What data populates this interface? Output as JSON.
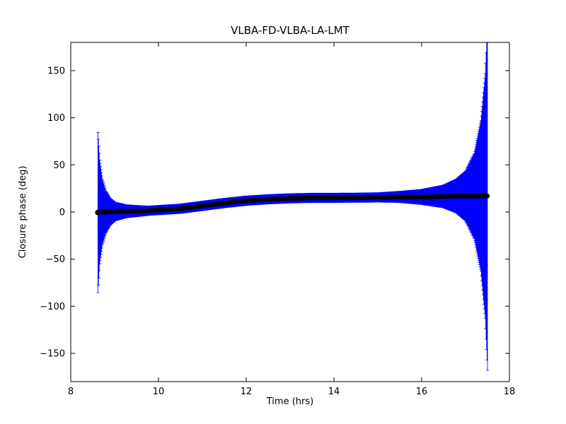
{
  "chart_data": {
    "type": "scatter",
    "title": "VLBA-FD-VLBA-LA-LMT",
    "xlabel": "Time (hrs)",
    "ylabel": "Closure phase (deg)",
    "xlim": [
      8,
      18
    ],
    "ylim": [
      -180,
      180
    ],
    "x_ticks": [
      8,
      10,
      12,
      14,
      16,
      18
    ],
    "y_ticks": [
      -150,
      -100,
      -50,
      0,
      50,
      100,
      150
    ],
    "grid": false,
    "legend": "none",
    "marker_color": "#000000",
    "errorbar_color": "#0000ff",
    "series": [
      {
        "name": "closure-phase",
        "points_format": [
          "time_hrs",
          "closure_phase_deg",
          "error_deg"
        ],
        "points": [
          [
            8.62,
            -0.5,
            85
          ],
          [
            8.66,
            0.0,
            55
          ],
          [
            8.72,
            0.0,
            35
          ],
          [
            8.8,
            0.0,
            22
          ],
          [
            8.9,
            0.3,
            14
          ],
          [
            9.0,
            0.5,
            10
          ],
          [
            9.25,
            0.8,
            7
          ],
          [
            9.5,
            1.0,
            6
          ],
          [
            9.75,
            1.3,
            5
          ],
          [
            10.0,
            2.0,
            5
          ],
          [
            10.5,
            3.5,
            5
          ],
          [
            11.0,
            6.5,
            5
          ],
          [
            11.5,
            9.5,
            5
          ],
          [
            12.0,
            12.0,
            5
          ],
          [
            12.5,
            13.5,
            5
          ],
          [
            13.0,
            14.5,
            5
          ],
          [
            13.5,
            15.0,
            5
          ],
          [
            14.0,
            15.0,
            5
          ],
          [
            14.5,
            15.2,
            5
          ],
          [
            15.0,
            15.5,
            5
          ],
          [
            15.5,
            16.0,
            6
          ],
          [
            16.0,
            16.0,
            8
          ],
          [
            16.5,
            16.5,
            12
          ],
          [
            16.8,
            17.0,
            18
          ],
          [
            17.0,
            17.0,
            26
          ],
          [
            17.2,
            17.0,
            45
          ],
          [
            17.35,
            17.0,
            80
          ],
          [
            17.45,
            17.0,
            130
          ],
          [
            17.5,
            17.0,
            185
          ]
        ]
      }
    ]
  }
}
